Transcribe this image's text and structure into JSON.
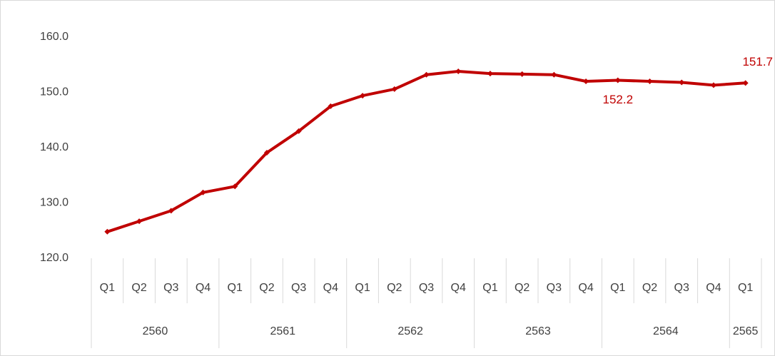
{
  "chart_data": {
    "type": "line",
    "categories": [
      "Q1",
      "Q2",
      "Q3",
      "Q4",
      "Q1",
      "Q2",
      "Q3",
      "Q4",
      "Q1",
      "Q2",
      "Q3",
      "Q4",
      "Q1",
      "Q2",
      "Q3",
      "Q4",
      "Q1",
      "Q2",
      "Q3",
      "Q4",
      "Q1"
    ],
    "x_groups": [
      {
        "label": "2560",
        "count": 4
      },
      {
        "label": "2561",
        "count": 4
      },
      {
        "label": "2562",
        "count": 4
      },
      {
        "label": "2563",
        "count": 4
      },
      {
        "label": "2564",
        "count": 4
      },
      {
        "label": "2565",
        "count": 1
      }
    ],
    "values": [
      124.8,
      126.7,
      128.6,
      131.9,
      133.0,
      139.1,
      143.0,
      147.5,
      149.4,
      150.6,
      153.2,
      153.8,
      153.4,
      153.3,
      153.2,
      152.0,
      152.2,
      152.0,
      151.8,
      151.3,
      151.7
    ],
    "labeled_points": [
      16,
      20
    ],
    "color": "#c00000",
    "ylim": [
      120,
      160
    ],
    "yticks": [
      {
        "value": 120,
        "label": "120.0"
      },
      {
        "value": 130,
        "label": "130.0"
      },
      {
        "value": 140,
        "label": "140.0"
      },
      {
        "value": 150,
        "label": "150.0"
      },
      {
        "value": 160,
        "label": "160.0"
      }
    ],
    "grid": false
  }
}
